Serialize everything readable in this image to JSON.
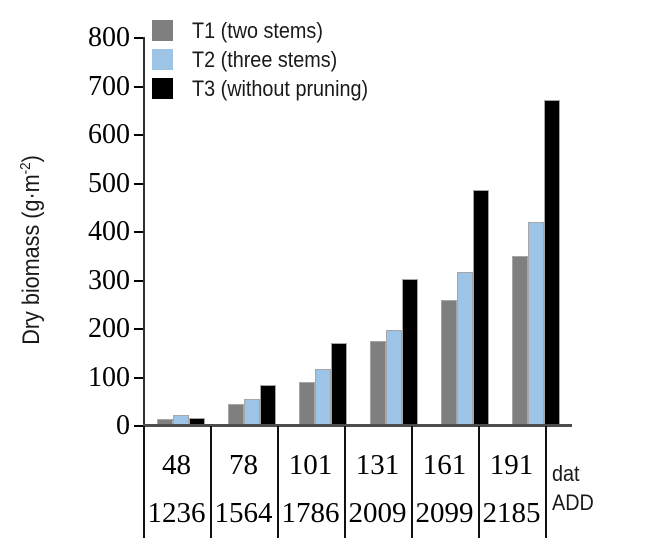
{
  "y_axis": {
    "title_prefix": "Dry biomass (g·m",
    "title_sup": "-2",
    "title_suffix": ")",
    "min": 0,
    "max": 800,
    "tick_step": 100,
    "tick_labels": [
      "0",
      "100",
      "200",
      "300",
      "400",
      "500",
      "600",
      "700",
      "800"
    ]
  },
  "x_table": {
    "row1_label": "dat",
    "row2_label": "ADD",
    "dat_values": [
      "48",
      "78",
      "101",
      "131",
      "161",
      "191"
    ],
    "add_values": [
      "1236",
      "1564",
      "1786",
      "2009",
      "2099",
      "2185"
    ]
  },
  "colors": {
    "t1_gray": "#7f7f7f",
    "t2_blue": "#9dc3e6",
    "t3_black": "#000000",
    "axis": "#2e2e2e"
  },
  "chart_data": {
    "type": "bar",
    "title": "",
    "ylabel": "Dry biomass (g·m⁻²)",
    "ylim": [
      0,
      800
    ],
    "ytick_step": 100,
    "grid": false,
    "legend_position": "top-left-inside",
    "categories_dat": [
      "48",
      "78",
      "101",
      "131",
      "161",
      "191"
    ],
    "categories_add": [
      "1236",
      "1564",
      "1786",
      "2009",
      "2099",
      "2185"
    ],
    "series": [
      {
        "key": "T1",
        "name": "T1 (two stems)",
        "color": "#7f7f7f",
        "values": [
          15,
          45,
          90,
          175,
          260,
          350
        ]
      },
      {
        "key": "T2",
        "name": "T2 (three stems)",
        "color": "#9dc3e6",
        "values": [
          22,
          56,
          117,
          198,
          318,
          420
        ]
      },
      {
        "key": "T3",
        "name": "T3 (without pruning)",
        "color": "#000000",
        "values": [
          17,
          85,
          172,
          303,
          487,
          672
        ]
      }
    ]
  }
}
